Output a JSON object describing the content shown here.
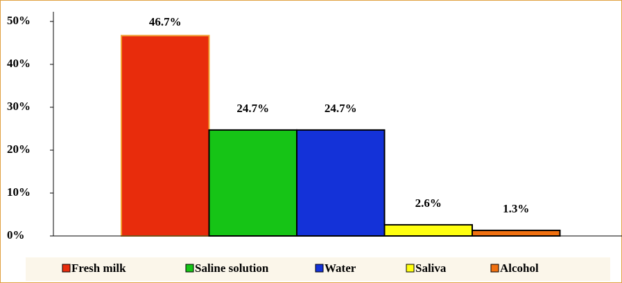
{
  "chart_data": {
    "type": "bar",
    "categories": [
      "Fresh milk",
      "Saline solution",
      "Water",
      "Saliva",
      "Alcohol"
    ],
    "values": [
      46.7,
      24.7,
      24.7,
      2.6,
      1.3
    ],
    "value_labels": [
      "46.7%",
      "24.7%",
      "24.7%",
      "2.6%",
      "1.3%"
    ],
    "colors": [
      "#e82c0c",
      "#16c416",
      "#1432d8",
      "#ffff10",
      "#f07010"
    ],
    "ylim": [
      0,
      50
    ],
    "yticks": [
      {
        "value": 0,
        "label": "0%"
      },
      {
        "value": 10,
        "label": "10%"
      },
      {
        "value": 20,
        "label": "20%"
      },
      {
        "value": 30,
        "label": "30%"
      },
      {
        "value": 40,
        "label": "40%"
      },
      {
        "value": 50,
        "label": "50%"
      }
    ],
    "legend": "bottom"
  }
}
